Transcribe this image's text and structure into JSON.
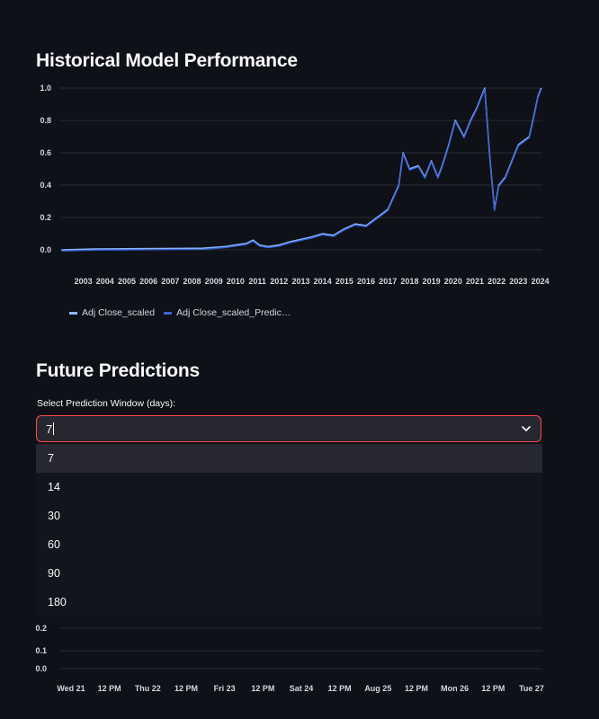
{
  "historical": {
    "title": "Historical Model Performance",
    "legend": [
      {
        "label": "Adj Close_scaled",
        "color": "#8fb8ff"
      },
      {
        "label": "Adj Close_scaled_Predic…",
        "color": "#3b62d9"
      }
    ]
  },
  "future": {
    "title": "Future Predictions",
    "select_label": "Select Prediction Window (days):",
    "select_value": "7",
    "options": [
      "7",
      "14",
      "30",
      "60",
      "90",
      "180"
    ],
    "active_option": "7"
  },
  "chart_data": [
    {
      "type": "line",
      "title": "",
      "xlabel": "",
      "ylabel": "",
      "ylim": [
        0,
        1.0
      ],
      "y_ticks": [
        "0.0",
        "0.2",
        "0.4",
        "0.6",
        "0.8",
        "1.0"
      ],
      "x_ticks": [
        "2003",
        "2004",
        "2005",
        "2006",
        "2007",
        "2008",
        "2009",
        "2010",
        "2011",
        "2012",
        "2013",
        "2014",
        "2015",
        "2016",
        "2017",
        "2018",
        "2019",
        "2020",
        "2021",
        "2022",
        "2023",
        "2024"
      ],
      "grid": true,
      "legend_position": "bottom-left",
      "series": [
        {
          "name": "Adj Close_scaled",
          "color": "#8fb8ff"
        },
        {
          "name": "Adj Close_scaled_Predic…",
          "color": "#3b62d9"
        }
      ],
      "x": [
        2002.5,
        2004,
        2006,
        2008,
        2009,
        2010,
        2010.5,
        2011,
        2011.3,
        2011.6,
        2012,
        2012.5,
        2013,
        2014,
        2014.5,
        2015,
        2015.5,
        2016,
        2016.5,
        2017,
        2017.5,
        2018,
        2018.2,
        2018.5,
        2018.9,
        2019.2,
        2019.5,
        2019.8,
        2020,
        2020.3,
        2020.6,
        2021,
        2021.3,
        2021.6,
        2021.95,
        2022.2,
        2022.4,
        2022.6,
        2022.9,
        2023.2,
        2023.5,
        2023.8,
        2024,
        2024.2,
        2024.4,
        2024.55
      ],
      "y": [
        0.0,
        0.005,
        0.007,
        0.009,
        0.01,
        0.02,
        0.03,
        0.04,
        0.06,
        0.03,
        0.02,
        0.03,
        0.05,
        0.08,
        0.1,
        0.09,
        0.13,
        0.16,
        0.15,
        0.2,
        0.25,
        0.4,
        0.6,
        0.5,
        0.52,
        0.45,
        0.55,
        0.45,
        0.52,
        0.65,
        0.8,
        0.7,
        0.8,
        0.88,
        1.0,
        0.55,
        0.25,
        0.4,
        0.45,
        0.55,
        0.65,
        0.68,
        0.7,
        0.82,
        0.95,
        1.0
      ]
    },
    {
      "type": "line",
      "title": "",
      "xlabel": "",
      "ylabel": "",
      "y_ticks": [
        "0.0",
        "0.1",
        "0.2"
      ],
      "x_ticks": [
        "Wed 21",
        "12 PM",
        "Thu 22",
        "12 PM",
        "Fri 23",
        "12 PM",
        "Sat 24",
        "12 PM",
        "Aug 25",
        "12 PM",
        "Mon 26",
        "12 PM",
        "Tue 27"
      ],
      "grid": true
    }
  ]
}
